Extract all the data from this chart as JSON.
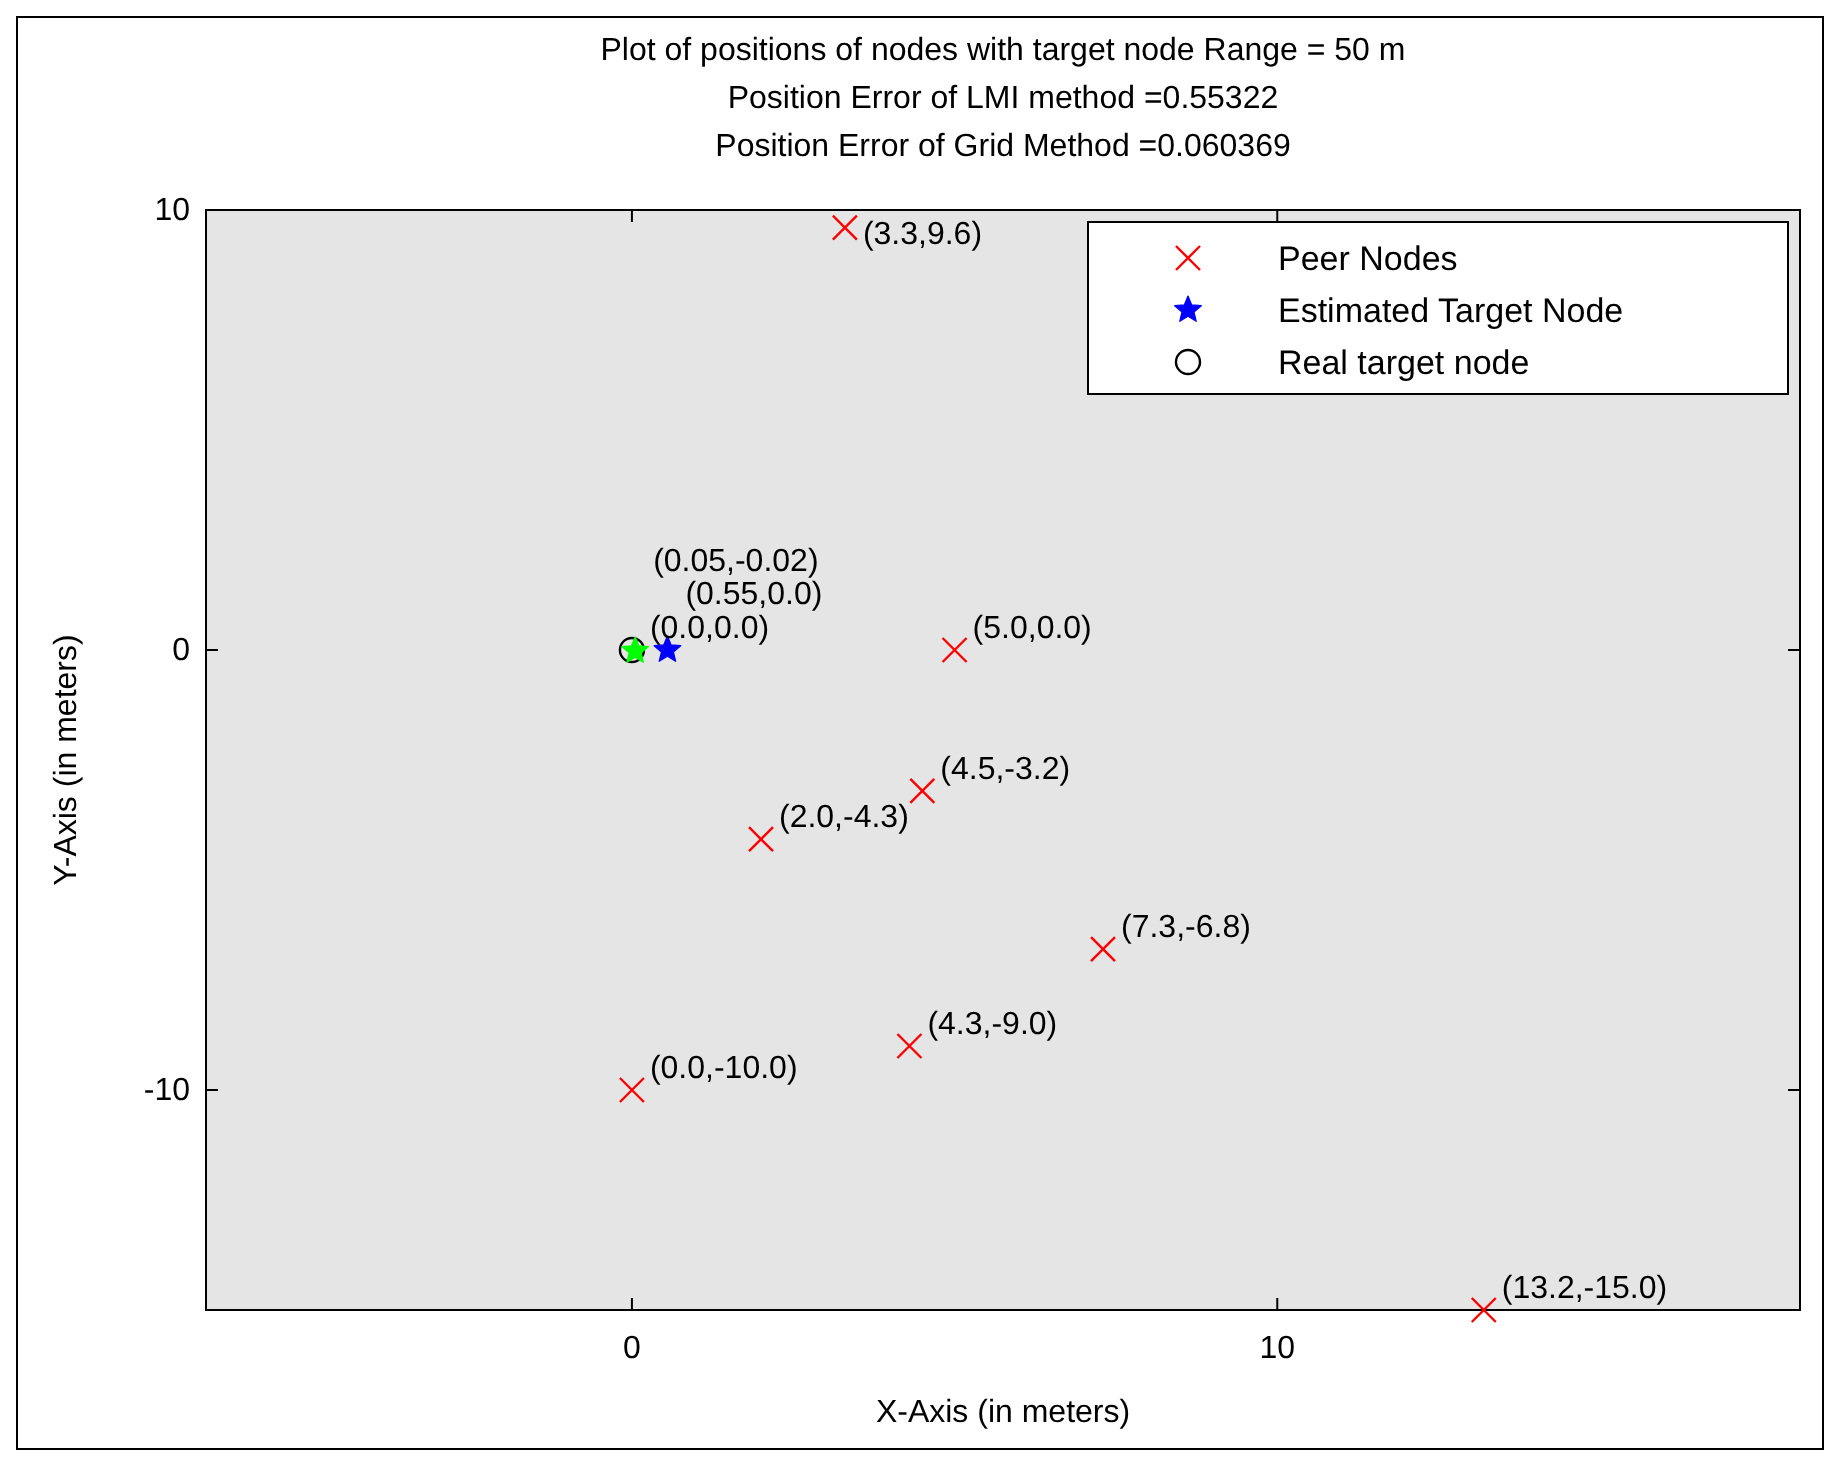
{
  "chart_data": {
    "type": "scatter",
    "title": "Plot of positions of nodes with target node Range = 50 m",
    "subtitle": "Position Error of LMI method =0.55322\nPosition Error of Grid Method =0.060369",
    "xlabel": "X-Axis (in meters)",
    "ylabel": "Y-Axis (in meters)",
    "xlim": [
      -6.6,
      18.1
    ],
    "ylim": [
      -15,
      10
    ],
    "xticks": [
      0,
      10
    ],
    "yticks": [
      -10,
      0,
      10
    ],
    "grid": false,
    "legend": "top right",
    "series": [
      {
        "name": "Peer Nodes",
        "color": "#ff0000",
        "marker": "cross",
        "x": [
          3.3,
          5.0,
          4.5,
          2.0,
          7.3,
          4.3,
          0.0,
          13.2
        ],
        "values": [
          9.6,
          0.0,
          -3.2,
          -4.3,
          -6.8,
          -9.0,
          -10.0,
          -15.0
        ]
      },
      {
        "name": "Estimated Target Node",
        "color": "#0000ff",
        "marker": "star",
        "x": [
          0.55
        ],
        "values": [
          0.0
        ]
      },
      {
        "name": "Real target node",
        "color": "#000000",
        "marker": "circle",
        "x": [
          0.0
        ],
        "values": [
          0.0
        ]
      },
      {
        "color": "#00ff00",
        "marker": "star",
        "x": [
          0.05
        ],
        "values": [
          -0.02
        ]
      }
    ],
    "annotations": [
      {
        "text": "(3.3,9.6)",
        "x": 3.3,
        "y": 9.6
      },
      {
        "text": "(5.0,0.0)",
        "x": 5.0,
        "y": 0.0
      },
      {
        "text": "(4.5,-3.2)",
        "x": 4.5,
        "y": -3.2
      },
      {
        "text": "(2.0,-4.3)",
        "x": 2.0,
        "y": -4.3
      },
      {
        "text": "(7.3,-6.8)",
        "x": 7.3,
        "y": -6.8
      },
      {
        "text": "(4.3,-9.0)",
        "x": 4.3,
        "y": -9.0
      },
      {
        "text": "(0.0,-10.0)",
        "x": 0.0,
        "y": -10.0
      },
      {
        "text": "(13.2,-15.0)",
        "x": 13.2,
        "y": -15.0
      },
      {
        "text": "(0.0,0.0)",
        "x": 0.0,
        "y": 0.0
      },
      {
        "text": "(0.55,0.0)",
        "x": 0.55,
        "y": 0.0
      },
      {
        "text": "(0.05,-0.02)",
        "x": 0.05,
        "y": -0.02
      }
    ]
  }
}
